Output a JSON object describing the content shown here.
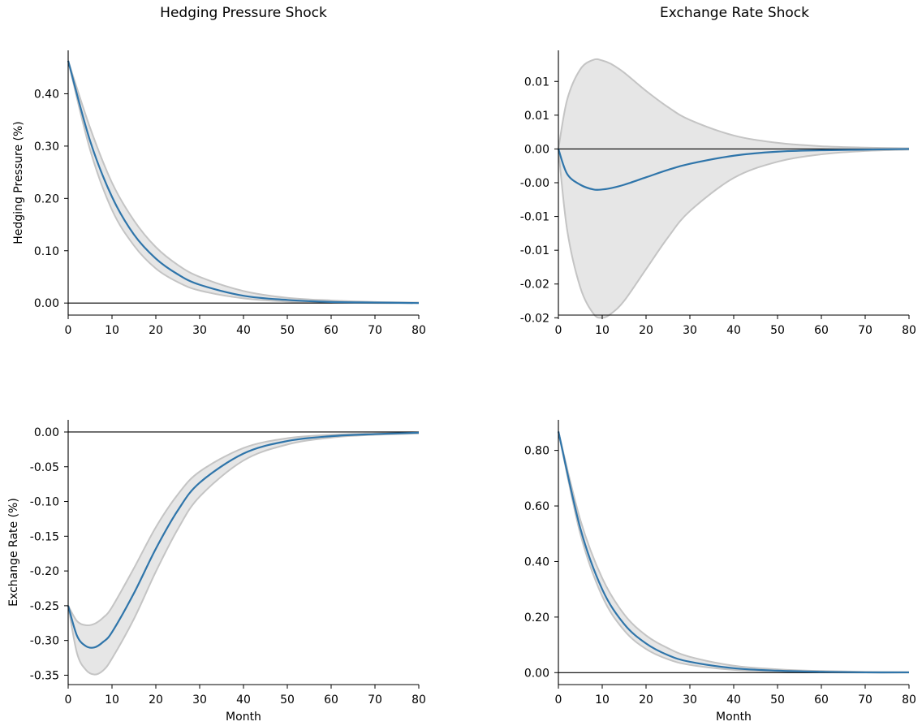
{
  "column_titles": [
    "Hedging Pressure Shock",
    "Exchange Rate Shock"
  ],
  "colors": {
    "line": "#2f75aa",
    "band_fill": "#e6e6e6",
    "band_edge": "#c4c4c4",
    "zero_line": "#000000"
  },
  "chart_data": [
    {
      "type": "line",
      "panel": "top-left",
      "title": "Hedging Pressure Shock",
      "xlabel": "",
      "ylabel": "Hedging Pressure (%)",
      "xlim": [
        0,
        80
      ],
      "ylim": [
        -0.023,
        0.483
      ],
      "xticks": [
        0,
        10,
        20,
        30,
        40,
        50,
        60,
        70,
        80
      ],
      "yticks": [
        0.0,
        0.1,
        0.2,
        0.3,
        0.4
      ],
      "ytick_labels": [
        "0.00",
        "0.10",
        "0.20",
        "0.30",
        "0.40"
      ],
      "x": [
        0,
        5,
        10,
        15,
        20,
        25,
        30,
        40,
        50,
        60,
        70,
        80
      ],
      "series": [
        {
          "role": "median",
          "values": [
            0.463,
            0.31,
            0.203,
            0.131,
            0.085,
            0.055,
            0.035,
            0.014,
            0.006,
            0.002,
            0.001,
            0.0
          ]
        },
        {
          "role": "upper",
          "values": [
            0.463,
            0.335,
            0.23,
            0.158,
            0.107,
            0.073,
            0.05,
            0.023,
            0.01,
            0.005,
            0.002,
            0.001
          ]
        },
        {
          "role": "lower",
          "values": [
            0.463,
            0.293,
            0.178,
            0.11,
            0.066,
            0.04,
            0.024,
            0.009,
            0.003,
            0.001,
            0.0,
            0.0
          ]
        }
      ],
      "grid": false
    },
    {
      "type": "line",
      "panel": "top-right",
      "title": "Exchange Rate Shock",
      "xlabel": "",
      "ylabel": "",
      "xlim": [
        0,
        80
      ],
      "ylim": [
        -0.0246,
        0.0146
      ],
      "xticks": [
        0,
        10,
        20,
        30,
        40,
        50,
        60,
        70,
        80
      ],
      "yticks": [
        0.01,
        0.005,
        0.0,
        -0.005,
        -0.01,
        -0.015,
        -0.02,
        -0.025
      ],
      "ytick_labels": [
        "0.01",
        "0.01",
        "0.00",
        "-0.00",
        "-0.01",
        "-0.01",
        "-0.02",
        "-0.02"
      ],
      "x": [
        0,
        2,
        5,
        8,
        10,
        12,
        15,
        20,
        25,
        30,
        40,
        50,
        60,
        70,
        80
      ],
      "series": [
        {
          "role": "median",
          "values": [
            0.0,
            -0.0037,
            -0.0053,
            -0.006,
            -0.006,
            -0.0058,
            -0.0053,
            -0.0042,
            -0.0031,
            -0.0022,
            -0.001,
            -0.0004,
            -0.0002,
            -0.0001,
            0.0
          ]
        },
        {
          "role": "upper",
          "values": [
            0.0,
            0.0073,
            0.0118,
            0.0132,
            0.0131,
            0.0126,
            0.0113,
            0.0086,
            0.0062,
            0.0043,
            0.002,
            0.0009,
            0.0004,
            0.0002,
            0.0001
          ]
        },
        {
          "role": "lower",
          "values": [
            0.0,
            -0.012,
            -0.0205,
            -0.0244,
            -0.025,
            -0.0244,
            -0.0225,
            -0.0178,
            -0.0131,
            -0.0092,
            -0.0043,
            -0.0019,
            -0.0008,
            -0.0003,
            -0.0001
          ]
        }
      ],
      "grid": false
    },
    {
      "type": "line",
      "panel": "bottom-left",
      "title": "",
      "xlabel": "Month",
      "ylabel": "Exchange Rate (%)",
      "xlim": [
        0,
        80
      ],
      "ylim": [
        -0.3635,
        0.0175
      ],
      "xticks": [
        0,
        10,
        20,
        30,
        40,
        50,
        60,
        70,
        80
      ],
      "yticks": [
        0.0,
        -0.05,
        -0.1,
        -0.15,
        -0.2,
        -0.25,
        -0.3,
        -0.35
      ],
      "ytick_labels": [
        "0.00",
        "-0.05",
        "-0.10",
        "-0.15",
        "-0.20",
        "-0.25",
        "-0.30",
        "-0.35"
      ],
      "x": [
        0,
        2,
        4,
        6,
        8,
        10,
        15,
        20,
        25,
        30,
        40,
        50,
        60,
        70,
        80
      ],
      "series": [
        {
          "role": "median",
          "values": [
            -0.25,
            -0.293,
            -0.308,
            -0.31,
            -0.302,
            -0.288,
            -0.232,
            -0.168,
            -0.113,
            -0.073,
            -0.031,
            -0.013,
            -0.006,
            -0.003,
            -0.001
          ]
        },
        {
          "role": "upper",
          "values": [
            -0.25,
            -0.272,
            -0.278,
            -0.276,
            -0.267,
            -0.252,
            -0.196,
            -0.137,
            -0.09,
            -0.057,
            -0.023,
            -0.009,
            -0.004,
            -0.002,
            -0.001
          ]
        },
        {
          "role": "lower",
          "values": [
            -0.25,
            -0.318,
            -0.342,
            -0.349,
            -0.343,
            -0.326,
            -0.269,
            -0.201,
            -0.14,
            -0.093,
            -0.041,
            -0.018,
            -0.008,
            -0.004,
            -0.002
          ]
        }
      ],
      "grid": false
    },
    {
      "type": "line",
      "panel": "bottom-right",
      "title": "",
      "xlabel": "Month",
      "ylabel": "",
      "xlim": [
        0,
        80
      ],
      "ylim": [
        -0.043,
        0.91
      ],
      "xticks": [
        0,
        10,
        20,
        30,
        40,
        50,
        60,
        70,
        80
      ],
      "yticks": [
        0.0,
        0.2,
        0.4,
        0.6,
        0.8
      ],
      "ytick_labels": [
        "0.00",
        "0.20",
        "0.40",
        "0.60",
        "0.80"
      ],
      "x": [
        0,
        5,
        10,
        15,
        20,
        25,
        30,
        40,
        50,
        60,
        70,
        80
      ],
      "series": [
        {
          "role": "median",
          "values": [
            0.868,
            0.52,
            0.3,
            0.175,
            0.105,
            0.063,
            0.039,
            0.016,
            0.007,
            0.003,
            0.001,
            0.001
          ]
        },
        {
          "role": "upper",
          "values": [
            0.868,
            0.55,
            0.34,
            0.21,
            0.134,
            0.088,
            0.057,
            0.025,
            0.012,
            0.006,
            0.003,
            0.002
          ]
        },
        {
          "role": "lower",
          "values": [
            0.868,
            0.5,
            0.275,
            0.152,
            0.085,
            0.048,
            0.028,
            0.01,
            0.004,
            0.001,
            0.0,
            0.0
          ]
        }
      ],
      "grid": false
    }
  ]
}
